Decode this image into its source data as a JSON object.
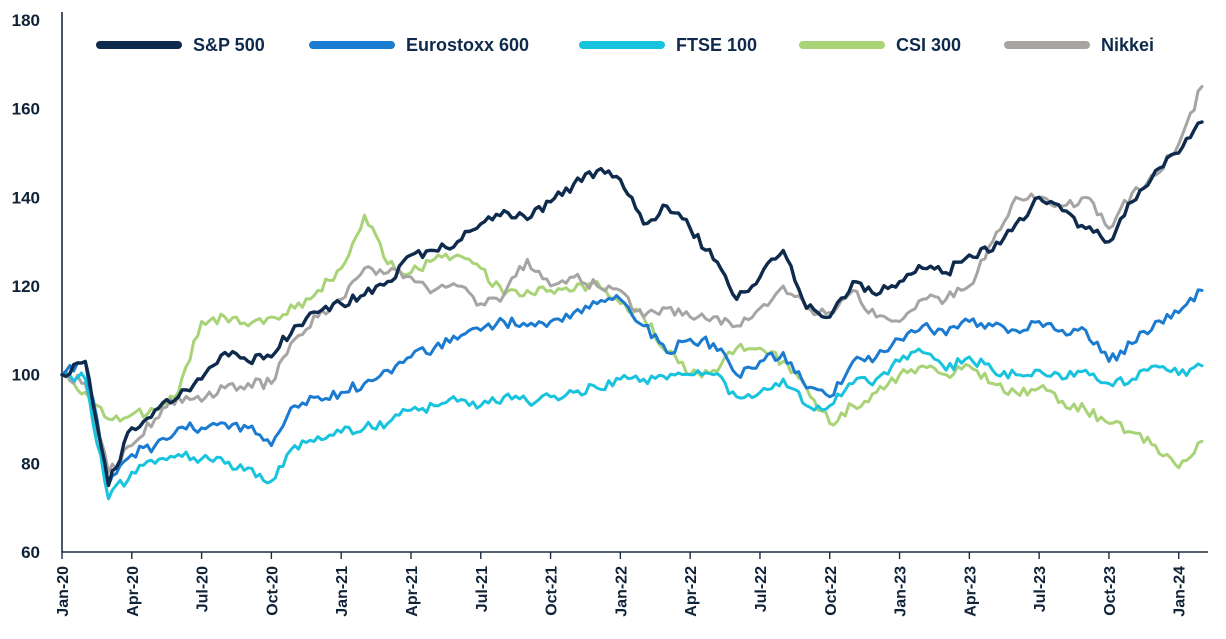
{
  "chart_data": {
    "type": "line",
    "title": "",
    "subtitle": "",
    "xlabel": "",
    "ylabel": "",
    "x_unit": "months since Jan-2020, monthly sampling Jan-2020 through Feb-2024",
    "ylim": [
      60,
      180
    ],
    "y_ticks": [
      60,
      80,
      100,
      120,
      140,
      160,
      180
    ],
    "x_ticks": {
      "labels": [
        "Jan-20",
        "Apr-20",
        "Jul-20",
        "Oct-20",
        "Jan-21",
        "Apr-21",
        "Jul-21",
        "Oct-21",
        "Jan-22",
        "Apr-22",
        "Jul-22",
        "Oct-22",
        "Jan-23",
        "Apr-23",
        "Jul-23",
        "Oct-23",
        "Jan-24"
      ],
      "month_index": [
        0,
        3,
        6,
        9,
        12,
        15,
        18,
        21,
        24,
        27,
        30,
        33,
        36,
        39,
        42,
        45,
        48
      ]
    },
    "grid": false,
    "legend_position": "top",
    "axis_color": "#1b2a41",
    "label_color": "#0f2238",
    "series": [
      {
        "name": "S&P 500",
        "color": "#0e2a4c",
        "values": [
          100,
          103,
          75,
          88,
          92,
          95,
          99,
          105,
          103,
          104,
          111,
          114,
          116,
          118,
          121,
          127,
          128,
          130,
          134,
          137,
          135,
          139,
          143,
          146,
          144,
          134,
          138,
          133,
          126,
          117,
          122,
          128,
          115,
          113,
          121,
          118,
          121,
          124,
          123,
          127,
          128,
          134,
          140,
          137,
          133,
          130,
          139,
          146,
          150,
          157
        ]
      },
      {
        "name": "Eurostoxx 600",
        "color": "#1a7bd0",
        "values": [
          100,
          103,
          75,
          82,
          84,
          88,
          88,
          89,
          88,
          84,
          93,
          95,
          96,
          98,
          101,
          104,
          106,
          108,
          110,
          112,
          111,
          112,
          114,
          116,
          117,
          111,
          105,
          108,
          107,
          100,
          103,
          105,
          97,
          95,
          103,
          104,
          108,
          111,
          109,
          112,
          111,
          110,
          112,
          110,
          110,
          103,
          107,
          112,
          114,
          119
        ]
      },
      {
        "name": "FTSE 100",
        "color": "#17c3dd",
        "values": [
          100,
          99,
          72,
          78,
          80,
          82,
          81,
          80,
          79,
          76,
          84,
          86,
          87,
          88,
          89,
          92,
          93,
          94,
          93,
          95,
          94,
          95,
          96,
          97,
          99,
          99,
          99,
          100,
          100,
          95,
          96,
          99,
          93,
          93,
          98,
          99,
          103,
          105,
          101,
          104,
          101,
          100,
          101,
          99,
          101,
          98,
          99,
          102,
          100,
          102
        ]
      },
      {
        "name": "CSI 300",
        "color": "#a8d377",
        "values": [
          100,
          96,
          90,
          91,
          92,
          96,
          112,
          113,
          111,
          113,
          115,
          119,
          124,
          136,
          125,
          123,
          126,
          127,
          124,
          118,
          119,
          119,
          119,
          121,
          116,
          113,
          105,
          100,
          101,
          106,
          106,
          103,
          97,
          89,
          93,
          96,
          100,
          102,
          100,
          102,
          98,
          96,
          97,
          94,
          92,
          89,
          87,
          84,
          79,
          85
        ]
      },
      {
        "name": "Nikkei",
        "color": "#a6a5a3",
        "values": [
          100,
          98,
          78,
          84,
          90,
          95,
          94,
          97,
          98,
          98,
          108,
          113,
          117,
          124,
          123,
          122,
          119,
          120,
          116,
          118,
          126,
          120,
          122,
          120,
          119,
          113,
          115,
          113,
          113,
          111,
          115,
          120,
          115,
          114,
          119,
          113,
          112,
          117,
          117,
          120,
          130,
          140,
          140,
          138,
          140,
          133,
          141,
          145,
          152,
          165
        ]
      }
    ]
  }
}
